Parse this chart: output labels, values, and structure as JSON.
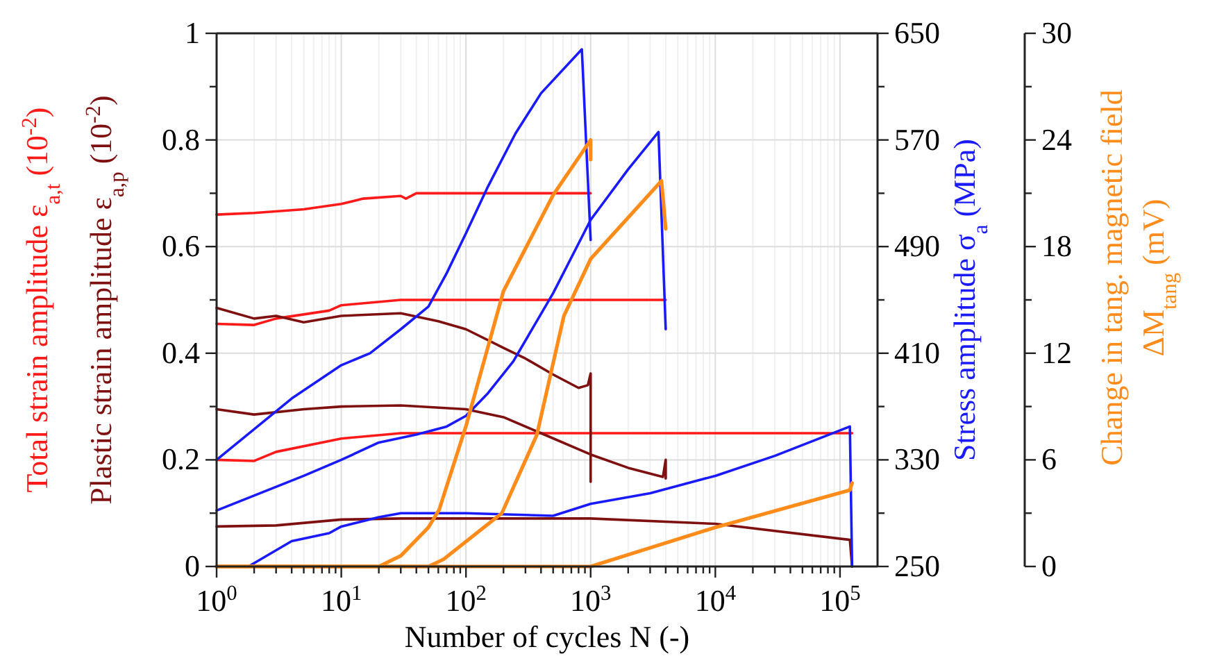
{
  "chart_data": {
    "type": "line",
    "xlabel": "Number of cycles N (-)",
    "ylabel": "Total strain amplitude ε$_{a,t}$ (10$^{-2}$)",
    "y2label": "Stress amplitude σ$_{a}$ (MPa)",
    "y3label": "Change in tang. magnetic field\nΔM$_{tang}$ (mV)",
    "annotations": [
      "Plastic strain amplitude ε$_{a,p}$ (10$^{-2}$)"
    ],
    "log": "x",
    "grid": true,
    "line_style": "solid",
    "xlim": [
      1,
      200000
    ],
    "xticks": [
      {
        "value": 1,
        "label": "10$^{0}$"
      },
      {
        "value": 2,
        "label": null
      },
      {
        "value": 3,
        "label": null
      },
      {
        "value": 4,
        "label": null
      },
      {
        "value": 5,
        "label": null
      },
      {
        "value": 6,
        "label": null
      },
      {
        "value": 7,
        "label": null
      },
      {
        "value": 8,
        "label": null
      },
      {
        "value": 9,
        "label": null
      },
      {
        "value": 10,
        "label": "10$^{1}$"
      },
      {
        "value": 20,
        "label": null
      },
      {
        "value": 30,
        "label": null
      },
      {
        "value": 40,
        "label": null
      },
      {
        "value": 50,
        "label": null
      },
      {
        "value": 60,
        "label": null
      },
      {
        "value": 70,
        "label": null
      },
      {
        "value": 80,
        "label": null
      },
      {
        "value": 90,
        "label": null
      },
      {
        "value": 100,
        "label": "10$^{2}$"
      },
      {
        "value": 200,
        "label": null
      },
      {
        "value": 300,
        "label": null
      },
      {
        "value": 400,
        "label": null
      },
      {
        "value": 500,
        "label": null
      },
      {
        "value": 600,
        "label": null
      },
      {
        "value": 700,
        "label": null
      },
      {
        "value": 800,
        "label": null
      },
      {
        "value": 900,
        "label": null
      },
      {
        "value": 1000,
        "label": "10$^{3}$"
      },
      {
        "value": 2000,
        "label": null
      },
      {
        "value": 3000,
        "label": null
      },
      {
        "value": 4000,
        "label": null
      },
      {
        "value": 5000,
        "label": null
      },
      {
        "value": 6000,
        "label": null
      },
      {
        "value": 7000,
        "label": null
      },
      {
        "value": 8000,
        "label": null
      },
      {
        "value": 9000,
        "label": null
      },
      {
        "value": 10000,
        "label": "10$^{4}$"
      },
      {
        "value": 20000,
        "label": null
      },
      {
        "value": 30000,
        "label": null
      },
      {
        "value": 40000,
        "label": null
      },
      {
        "value": 50000,
        "label": null
      },
      {
        "value": 60000,
        "label": null
      },
      {
        "value": 70000,
        "label": null
      },
      {
        "value": 80000,
        "label": null
      },
      {
        "value": 90000,
        "label": null
      },
      {
        "value": 100000,
        "label": "10$^{5}$"
      }
    ],
    "ylim": [
      0,
      1
    ],
    "yticks": [
      0,
      {
        "value": 0.1,
        "label": null
      },
      0.2,
      {
        "value": 0.3,
        "label": null
      },
      0.4,
      {
        "value": 0.5,
        "label": null
      },
      0.6,
      {
        "value": 0.7,
        "label": null
      },
      0.8,
      {
        "value": 0.9,
        "label": null
      },
      1
    ],
    "y2lim": [
      250,
      650
    ],
    "y2ticks": [
      250,
      {
        "value": 290,
        "label": null
      },
      330,
      {
        "value": 370,
        "label": null
      },
      410,
      {
        "value": 450,
        "label": null
      },
      490,
      {
        "value": 530,
        "label": null
      },
      570,
      {
        "value": 610,
        "label": null
      },
      650
    ],
    "y3lim": [
      0,
      30
    ],
    "y3ticks": [
      0,
      {
        "value": 3,
        "label": null
      },
      6,
      {
        "value": 9,
        "label": null
      },
      12,
      {
        "value": 15,
        "label": null
      },
      18,
      {
        "value": 21,
        "label": null
      },
      24,
      {
        "value": 27,
        "label": null
      },
      30
    ],
    "series": [
      {
        "color": "#ff1a1a",
        "x": [
          1,
          2,
          5,
          10,
          15,
          30,
          33,
          40,
          100,
          1000
        ],
        "values": [
          0.66,
          0.663,
          0.67,
          0.68,
          0.69,
          0.695,
          0.69,
          0.7,
          0.7,
          0.7
        ]
      },
      {
        "color": "#ff1a1a",
        "x": [
          1,
          2,
          3,
          8,
          10,
          30,
          100,
          300,
          4000
        ],
        "values": [
          0.455,
          0.453,
          0.465,
          0.48,
          0.49,
          0.5,
          0.5,
          0.5,
          0.5
        ]
      },
      {
        "color": "#ff1a1a",
        "x": [
          1,
          2,
          3,
          10,
          30,
          125000
        ],
        "values": [
          0.2,
          0.198,
          0.215,
          0.24,
          0.25,
          0.25
        ]
      },
      {
        "color": "#7f1010",
        "x": [
          1,
          2,
          3,
          5,
          10,
          30,
          60,
          100,
          200,
          300,
          500,
          800,
          950,
          1000,
          1000
        ],
        "values": [
          0.485,
          0.465,
          0.47,
          0.458,
          0.47,
          0.475,
          0.46,
          0.445,
          0.41,
          0.39,
          0.36,
          0.335,
          0.34,
          0.362,
          0.159
        ]
      },
      {
        "color": "#7f1010",
        "x": [
          1,
          2,
          5,
          10,
          30,
          100,
          200,
          400,
          1000,
          2000,
          3800,
          4000,
          4000
        ],
        "values": [
          0.295,
          0.285,
          0.295,
          0.3,
          0.302,
          0.295,
          0.28,
          0.25,
          0.21,
          0.185,
          0.168,
          0.2,
          0.165
        ]
      },
      {
        "color": "#7f1010",
        "x": [
          1,
          3,
          10,
          30,
          1000,
          10000,
          120000,
          125000
        ],
        "values": [
          0.075,
          0.077,
          0.088,
          0.09,
          0.09,
          0.08,
          0.05,
          0
        ]
      },
      {
        "color": "#1a1aff",
        "axis": "y2",
        "x": [
          1,
          4,
          10,
          17,
          30,
          50,
          70,
          100,
          150,
          250,
          400,
          850,
          1000
        ],
        "values": [
          330,
          376,
          401,
          410,
          428,
          445,
          470,
          500,
          535,
          575,
          605,
          638,
          495
        ]
      },
      {
        "color": "#1a1aff",
        "axis": "y2",
        "x": [
          1,
          5,
          10,
          20,
          40,
          70,
          100,
          150,
          240,
          500,
          1000,
          2000,
          3500,
          4000
        ],
        "values": [
          292,
          318,
          330,
          343,
          349,
          355,
          363,
          380,
          404,
          455,
          510,
          548,
          576,
          428
        ]
      },
      {
        "color": "#1a1aff",
        "axis": "y2",
        "x": [
          1.8,
          4,
          8,
          10,
          20,
          30,
          100,
          500,
          1000,
          3000,
          10000,
          30000,
          120000,
          125000
        ],
        "values": [
          250,
          269,
          275,
          280,
          287,
          290,
          290,
          288,
          297,
          305,
          318,
          333,
          355,
          250
        ]
      },
      {
        "color": "#ff8c1a",
        "axis": "y3",
        "x": [
          1,
          20,
          30,
          50,
          61,
          100,
          200,
          500,
          1000,
          1000
        ],
        "values": [
          0,
          0,
          0.6,
          2.2,
          3.2,
          7.9,
          15.5,
          20.9,
          24,
          22.9
        ]
      },
      {
        "color": "#ff8c1a",
        "axis": "y3",
        "x": [
          1,
          50,
          66,
          194,
          370,
          610,
          1000,
          3700,
          4000
        ],
        "values": [
          0,
          0,
          0.4,
          3,
          7.4,
          14.1,
          17.3,
          21.7,
          19
        ]
      },
      {
        "color": "#ff8c1a",
        "axis": "y3",
        "x": [
          1,
          1000,
          10000,
          120000,
          125000
        ],
        "values": [
          0,
          0,
          2.2,
          4.3,
          4.7
        ]
      }
    ]
  }
}
